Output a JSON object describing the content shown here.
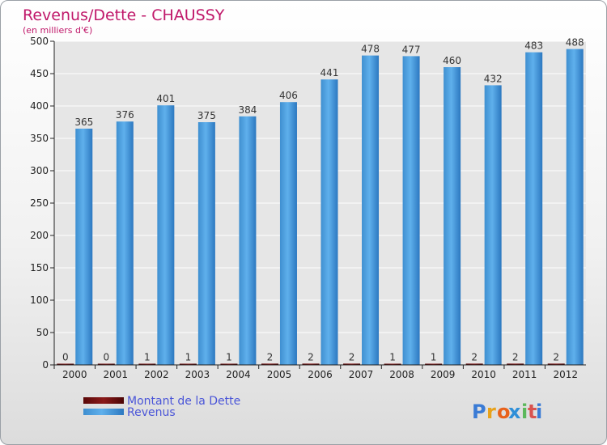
{
  "chart_data": {
    "type": "bar",
    "title": "Revenus/Dette - CHAUSSY",
    "subtitle": "(en milliers d'€)",
    "categories": [
      "2000",
      "2001",
      "2002",
      "2003",
      "2004",
      "2005",
      "2006",
      "2007",
      "2008",
      "2009",
      "2010",
      "2011",
      "2012"
    ],
    "series": [
      {
        "name": "Montant de la Dette",
        "color": "#6b0a0a",
        "values": [
          0,
          0,
          1,
          1,
          1,
          2,
          2,
          2,
          1,
          1,
          2,
          2,
          2
        ]
      },
      {
        "name": "Revenus",
        "color": "#4aa3e0",
        "values": [
          365,
          376,
          401,
          375,
          384,
          406,
          441,
          478,
          477,
          460,
          432,
          483,
          488
        ]
      }
    ],
    "yticks": [
      0,
      50,
      100,
      150,
      200,
      250,
      300,
      350,
      400,
      450,
      500
    ],
    "ylim": [
      0,
      500
    ],
    "grid": true,
    "legend_position": "bottom-left"
  },
  "brand": {
    "letters": [
      "P",
      "r",
      "o",
      "x",
      "i",
      "t",
      "i"
    ],
    "colors": [
      "#3a7bd5",
      "#e8a21b",
      "#e8621b",
      "#2f8fd8",
      "#5cb85c",
      "#d9534f",
      "#3a7bd5"
    ]
  },
  "colors": {
    "title": "#c0186a",
    "axis": "#222222",
    "grid": "#ffffff",
    "plot_bg": "#e6e6e6"
  }
}
